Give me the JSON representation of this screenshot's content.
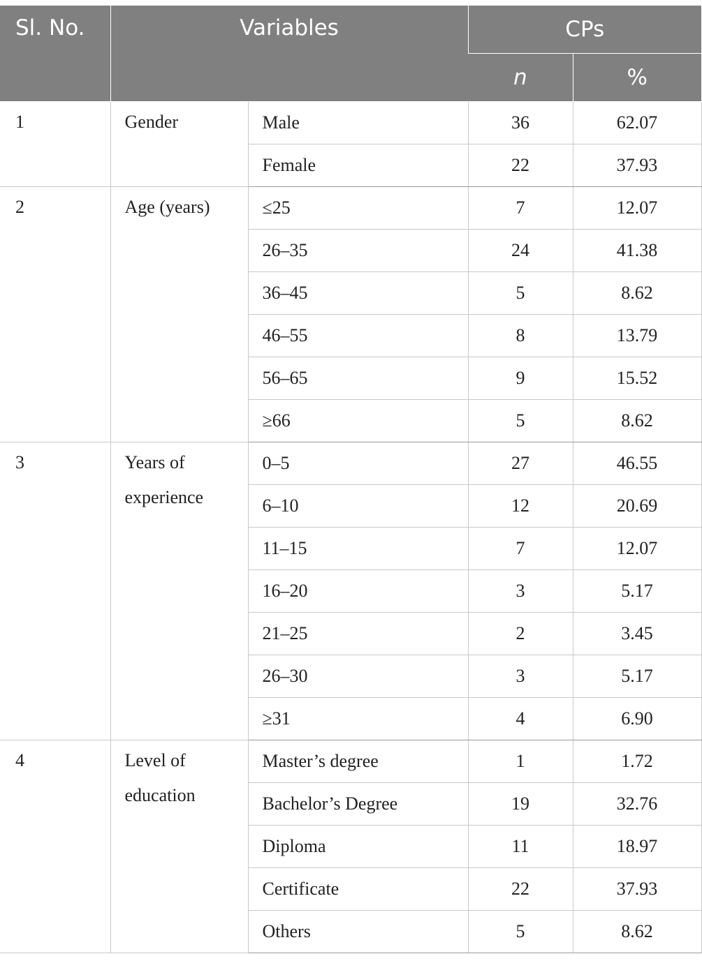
{
  "header": {
    "sl_no": "Sl. No.",
    "variables": "Variables",
    "cps": "CPs",
    "n": "n",
    "percent": "%"
  },
  "groups": [
    {
      "sl": "1",
      "variable": "Gender",
      "rows": [
        {
          "category": "Male",
          "n": "36",
          "pct": "62.07"
        },
        {
          "category": "Female",
          "n": "22",
          "pct": "37.93"
        }
      ]
    },
    {
      "sl": "2",
      "variable": "Age (years)",
      "rows": [
        {
          "category": "≤25",
          "n": "7",
          "pct": "12.07"
        },
        {
          "category": "26–35",
          "n": "24",
          "pct": "41.38"
        },
        {
          "category": "36–45",
          "n": "5",
          "pct": "8.62"
        },
        {
          "category": "46–55",
          "n": "8",
          "pct": "13.79"
        },
        {
          "category": "56–65",
          "n": "9",
          "pct": "15.52"
        },
        {
          "category": "≥66",
          "n": "5",
          "pct": "8.62"
        }
      ]
    },
    {
      "sl": "3",
      "variable": "Years of experience",
      "rows": [
        {
          "category": "0–5",
          "n": "27",
          "pct": "46.55"
        },
        {
          "category": "6–10",
          "n": "12",
          "pct": "20.69"
        },
        {
          "category": "11–15",
          "n": "7",
          "pct": "12.07"
        },
        {
          "category": "16–20",
          "n": "3",
          "pct": "5.17"
        },
        {
          "category": "21–25",
          "n": "2",
          "pct": "3.45"
        },
        {
          "category": "26–30",
          "n": "3",
          "pct": "5.17"
        },
        {
          "category": "≥31",
          "n": "4",
          "pct": "6.90"
        }
      ]
    },
    {
      "sl": "4",
      "variable": "Level of education",
      "rows": [
        {
          "category": "Master’s degree",
          "n": "1",
          "pct": "1.72"
        },
        {
          "category": "Bachelor’s Degree",
          "n": "19",
          "pct": "32.76"
        },
        {
          "category": "Diploma",
          "n": "11",
          "pct": "18.97"
        },
        {
          "category": "Certificate",
          "n": "22",
          "pct": "37.93"
        },
        {
          "category": "Others",
          "n": "5",
          "pct": "8.62"
        }
      ]
    }
  ]
}
